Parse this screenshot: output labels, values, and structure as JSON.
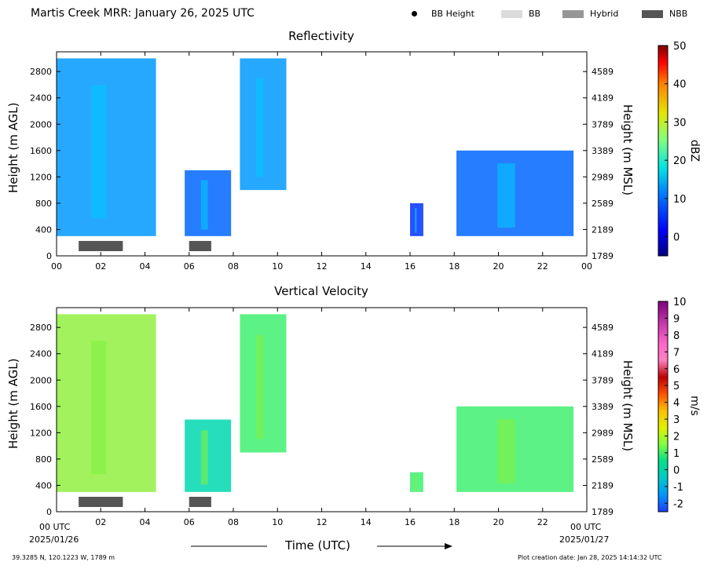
{
  "header": {
    "title": "Martis Creek MRR:  January 26, 2025 UTC",
    "legend": [
      {
        "label": "BB Height",
        "kind": "dot",
        "color": "#000000"
      },
      {
        "label": "BB",
        "kind": "swatch",
        "color": "#dcdcdc"
      },
      {
        "label": "Hybrid",
        "kind": "swatch",
        "color": "#969696"
      },
      {
        "label": "NBB",
        "kind": "swatch",
        "color": "#555555"
      }
    ]
  },
  "footer": {
    "location": "39.3285 N, 120.1223 W, 1789 m",
    "creation_date": "Plot creation date: Jan 28, 2025 14:14:32 UTC",
    "xlabel": "Time (UTC)",
    "start_label_time": "00 UTC",
    "start_label_date": "2025/01/26",
    "end_label_time": "00 UTC",
    "end_label_date": "2025/01/27"
  },
  "chart_data": [
    {
      "type": "heatmap",
      "title": "Reflectivity",
      "xlabel": "",
      "ylabel": "Height (m AGL)",
      "y2label": "Height (m MSL)",
      "xlim": [
        0,
        24
      ],
      "ylim": [
        0,
        3100
      ],
      "x_ticks": [
        "00",
        "02",
        "04",
        "06",
        "08",
        "10",
        "12",
        "14",
        "16",
        "18",
        "20",
        "22",
        "00"
      ],
      "y_ticks": [
        "0",
        "400",
        "800",
        "1200",
        "1600",
        "2000",
        "2400",
        "2800"
      ],
      "y_tick_values": [
        0,
        400,
        800,
        1200,
        1600,
        2000,
        2400,
        2800
      ],
      "y2_ticks": [
        "1789",
        "2189",
        "2589",
        "2989",
        "3389",
        "3789",
        "4189",
        "4589"
      ],
      "colorbar": {
        "label": "dBZ",
        "range": [
          -5,
          50
        ],
        "ticks": [
          "0",
          "10",
          "20",
          "30",
          "40",
          "50"
        ],
        "tick_values": [
          0,
          10,
          20,
          30,
          40,
          50
        ]
      },
      "bb_bars": [
        {
          "type": "NBB",
          "start_hour": 1.0,
          "end_hour": 3.0
        },
        {
          "type": "NBB",
          "start_hour": 6.0,
          "end_hour": 7.0
        }
      ],
      "echo_regions": [
        {
          "start_hour": 0.0,
          "end_hour": 4.5,
          "bottom_m": 300,
          "top_m": 3000,
          "value_dbz": 8
        },
        {
          "start_hour": 5.8,
          "end_hour": 7.9,
          "bottom_m": 300,
          "top_m": 1300,
          "value_dbz": 5
        },
        {
          "start_hour": 8.3,
          "end_hour": 10.4,
          "bottom_m": 1000,
          "top_m": 3000,
          "value_dbz": 9
        },
        {
          "start_hour": 16.0,
          "end_hour": 16.6,
          "bottom_m": 300,
          "top_m": 800,
          "value_dbz": 3
        },
        {
          "start_hour": 18.1,
          "end_hour": 23.4,
          "bottom_m": 300,
          "top_m": 1600,
          "value_dbz": 4
        }
      ]
    },
    {
      "type": "heatmap",
      "title": "Vertical Velocity",
      "xlabel": "Time (UTC)",
      "ylabel": "Height (m AGL)",
      "y2label": "Height (m MSL)",
      "xlim": [
        0,
        24
      ],
      "ylim": [
        0,
        3100
      ],
      "x_ticks": [
        "",
        "02",
        "04",
        "06",
        "08",
        "10",
        "12",
        "14",
        "16",
        "18",
        "20",
        "22",
        ""
      ],
      "y_ticks": [
        "0",
        "400",
        "800",
        "1200",
        "1600",
        "2000",
        "2400",
        "2800"
      ],
      "y_tick_values": [
        0,
        400,
        800,
        1200,
        1600,
        2000,
        2400,
        2800
      ],
      "y2_ticks": [
        "1789",
        "2189",
        "2589",
        "2989",
        "3389",
        "3789",
        "4189",
        "4589"
      ],
      "colorbar": {
        "label": "m/s",
        "range": [
          -2.5,
          10
        ],
        "ticks": [
          "-2",
          "-1",
          "0",
          "1",
          "2",
          "3",
          "4",
          "5",
          "6",
          "7",
          "8",
          "9",
          "10"
        ],
        "tick_values": [
          -2,
          -1,
          0,
          1,
          2,
          3,
          4,
          5,
          6,
          7,
          8,
          9,
          10
        ]
      },
      "bb_bars": [
        {
          "type": "NBB",
          "start_hour": 1.0,
          "end_hour": 3.0
        },
        {
          "type": "NBB",
          "start_hour": 6.0,
          "end_hour": 7.0
        }
      ],
      "echo_regions": [
        {
          "start_hour": 0.0,
          "end_hour": 4.5,
          "bottom_m": 300,
          "top_m": 3000,
          "value_ms": 1.2
        },
        {
          "start_hour": 5.8,
          "end_hour": 7.9,
          "bottom_m": 300,
          "top_m": 1400,
          "value_ms": 0.3
        },
        {
          "start_hour": 8.3,
          "end_hour": 10.4,
          "bottom_m": 900,
          "top_m": 3000,
          "value_ms": 1.0
        },
        {
          "start_hour": 16.0,
          "end_hour": 16.6,
          "bottom_m": 300,
          "top_m": 600,
          "value_ms": 0.8
        },
        {
          "start_hour": 18.1,
          "end_hour": 23.4,
          "bottom_m": 300,
          "top_m": 1600,
          "value_ms": 1.0
        }
      ]
    }
  ]
}
